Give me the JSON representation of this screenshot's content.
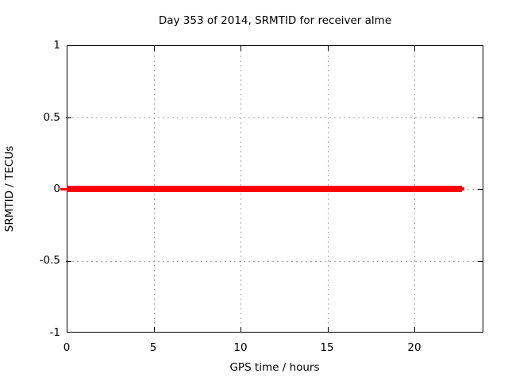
{
  "chart_data": {
    "type": "line",
    "title": "Day 353 of 2014, SRMTID for receiver alme",
    "xlabel": "GPS time / hours",
    "ylabel": "SRMTID / TECUs",
    "xlim": [
      0,
      24
    ],
    "ylim": [
      -1,
      1
    ],
    "x_tick_labels": [
      "0",
      "5",
      "10",
      "15",
      "20"
    ],
    "x_tick_values": [
      0,
      5,
      10,
      15,
      20
    ],
    "y_tick_labels": [
      "1",
      "0.5",
      "0",
      "-0.5",
      "-1"
    ],
    "y_tick_values": [
      1,
      0.5,
      0,
      -0.5,
      -1
    ],
    "grid": true,
    "grid_style": "dotted",
    "legend_position": "none",
    "series": [
      {
        "name": "SRMTID",
        "color": "#ff0000",
        "style": "thick horizontal line",
        "x_start": 0,
        "x_end": 22.8,
        "y_constant": 0,
        "description": "Constant value of 0 TECUs from 0 to ~22.8 GPS hours"
      }
    ],
    "colors": {
      "line": "#ff0000",
      "grid": "#a8a8a8",
      "border": "#000000",
      "background": "#ffffff",
      "text": "#000000"
    }
  }
}
